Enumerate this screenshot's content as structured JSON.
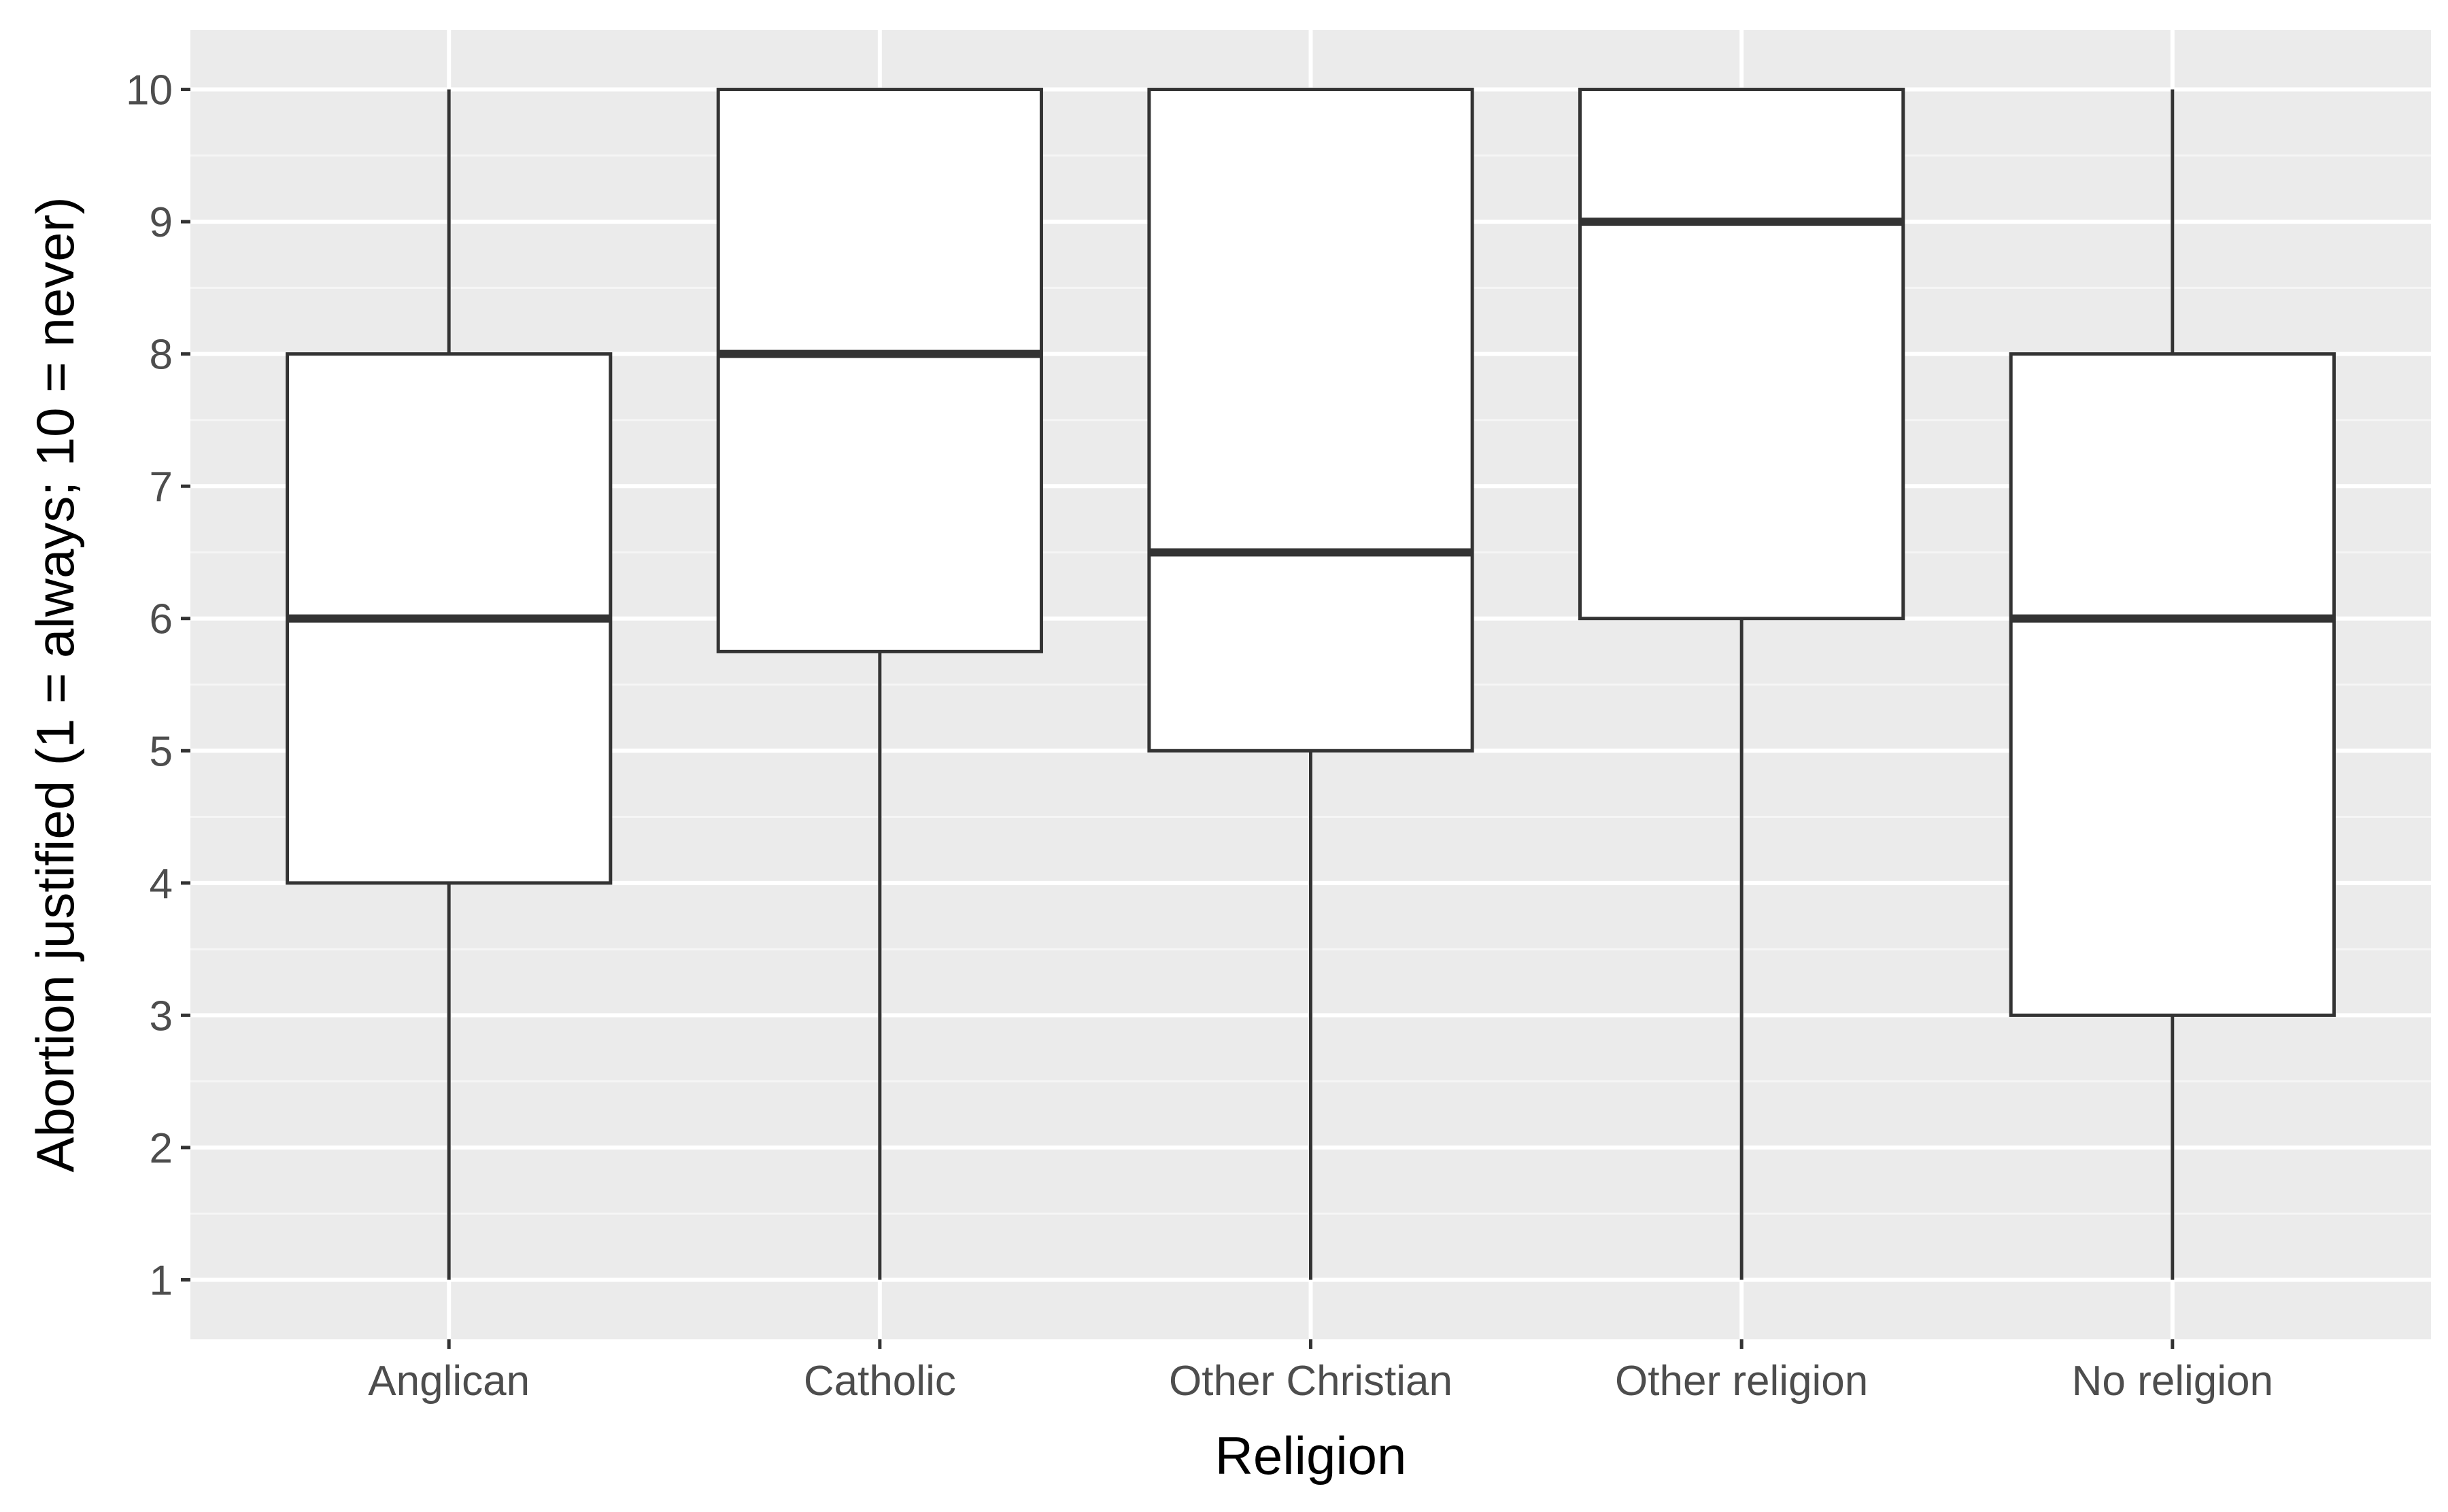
{
  "chart_data": {
    "type": "boxplot",
    "title": "",
    "xlabel": "Religion",
    "ylabel": "Abortion justified (1 = always; 10 = never)",
    "ylim": [
      0.55,
      10.45
    ],
    "yticks": [
      1,
      2,
      3,
      4,
      5,
      6,
      7,
      8,
      9,
      10
    ],
    "grid": true,
    "legend": "none",
    "colors": {
      "panel": "#ebebeb",
      "grid_major": "#ffffff",
      "grid_minor": "#f5f5f5",
      "box_fill": "#ffffff",
      "box_line": "#333333",
      "tick_text": "#4d4d4d",
      "tick_mark": "#333333"
    },
    "categories": [
      "Anglican",
      "Catholic",
      "Other Christian",
      "Other religion",
      "No religion"
    ],
    "boxes": [
      {
        "category": "Anglican",
        "whisker_low": 1,
        "q1": 4,
        "median": 6,
        "q3": 8,
        "whisker_high": 10
      },
      {
        "category": "Catholic",
        "whisker_low": 1,
        "q1": 5.75,
        "median": 8,
        "q3": 10,
        "whisker_high": 10
      },
      {
        "category": "Other Christian",
        "whisker_low": 1,
        "q1": 5,
        "median": 6.5,
        "q3": 10,
        "whisker_high": 10
      },
      {
        "category": "Other religion",
        "whisker_low": 1,
        "q1": 6,
        "median": 9,
        "q3": 10,
        "whisker_high": 10
      },
      {
        "category": "No religion",
        "whisker_low": 1,
        "q1": 3,
        "median": 6,
        "q3": 8,
        "whisker_high": 10
      }
    ]
  }
}
